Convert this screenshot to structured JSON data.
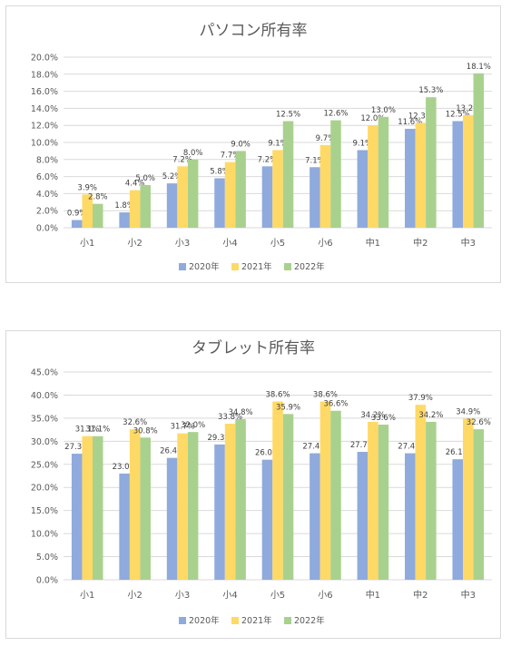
{
  "colors": {
    "y2020": "#8faadc",
    "y2021": "#ffd966",
    "y2022": "#a9d18e",
    "grid": "#d9d9d9",
    "text": "#595959"
  },
  "chart_data": [
    {
      "type": "bar",
      "title": "パソコン所有率",
      "categories": [
        "小1",
        "小2",
        "小3",
        "小4",
        "小5",
        "小6",
        "中1",
        "中2",
        "中3"
      ],
      "ylim": [
        0,
        20
      ],
      "yticks": [
        "0.0%",
        "2.0%",
        "4.0%",
        "6.0%",
        "8.0%",
        "10.0%",
        "12.0%",
        "14.0%",
        "16.0%",
        "18.0%",
        "20.0%"
      ],
      "grid": true,
      "legend": "bottom",
      "series": [
        {
          "name": "2020年",
          "values": [
            0.9,
            1.8,
            5.2,
            5.8,
            7.2,
            7.1,
            9.1,
            11.6,
            12.5
          ],
          "labels": [
            "0.9%",
            "1.8%",
            "5.2%",
            "5.8%",
            "7.2%",
            "7.1%",
            "9.1%",
            "11.6%",
            "12.5%"
          ]
        },
        {
          "name": "2021年",
          "values": [
            3.9,
            4.4,
            7.2,
            7.7,
            9.1,
            9.7,
            12.0,
            12.3,
            13.2
          ],
          "labels": [
            "3.9%",
            "4.4%",
            "7.2%",
            "7.7%",
            "9.1%",
            "9.7%",
            "12.0%",
            "12.3%",
            "13.2%"
          ]
        },
        {
          "name": "2022年",
          "values": [
            2.8,
            5.0,
            8.0,
            9.0,
            12.5,
            12.6,
            13.0,
            15.3,
            18.1
          ],
          "labels": [
            "2.8%",
            "5.0%",
            "8.0%",
            "9.0%",
            "12.5%",
            "12.6%",
            "13.0%",
            "15.3%",
            "18.1%"
          ]
        }
      ]
    },
    {
      "type": "bar",
      "title": "タブレット所有率",
      "categories": [
        "小1",
        "小2",
        "小3",
        "小4",
        "小5",
        "小6",
        "中1",
        "中2",
        "中3"
      ],
      "ylim": [
        0,
        45
      ],
      "yticks": [
        "0.0%",
        "5.0%",
        "10.0%",
        "15.0%",
        "20.0%",
        "25.0%",
        "30.0%",
        "35.0%",
        "40.0%",
        "45.0%"
      ],
      "grid": true,
      "legend": "bottom",
      "series": [
        {
          "name": "2020年",
          "values": [
            27.3,
            23.0,
            26.4,
            29.3,
            26.0,
            27.4,
            27.7,
            27.4,
            26.1
          ],
          "labels": [
            "27.3%",
            "23.0%",
            "26.4%",
            "29.3%",
            "26.0%",
            "27.4%",
            "27.7%",
            "27.4%",
            "26.1%"
          ]
        },
        {
          "name": "2021年",
          "values": [
            31.1,
            32.6,
            31.7,
            33.8,
            38.6,
            38.6,
            34.2,
            37.9,
            34.9
          ],
          "labels": [
            "31.1%",
            "32.6%",
            "31.7%",
            "33.8%",
            "38.6%",
            "38.6%",
            "34.2%",
            "37.9%",
            "34.9%"
          ]
        },
        {
          "name": "2022年",
          "values": [
            31.1,
            30.8,
            32.0,
            34.8,
            35.9,
            36.6,
            33.6,
            34.2,
            32.6
          ],
          "labels": [
            "31.1%",
            "30.8%",
            "32.0%",
            "34.8%",
            "35.9%",
            "36.6%",
            "33.6%",
            "34.2%",
            "32.6%"
          ]
        }
      ]
    }
  ]
}
